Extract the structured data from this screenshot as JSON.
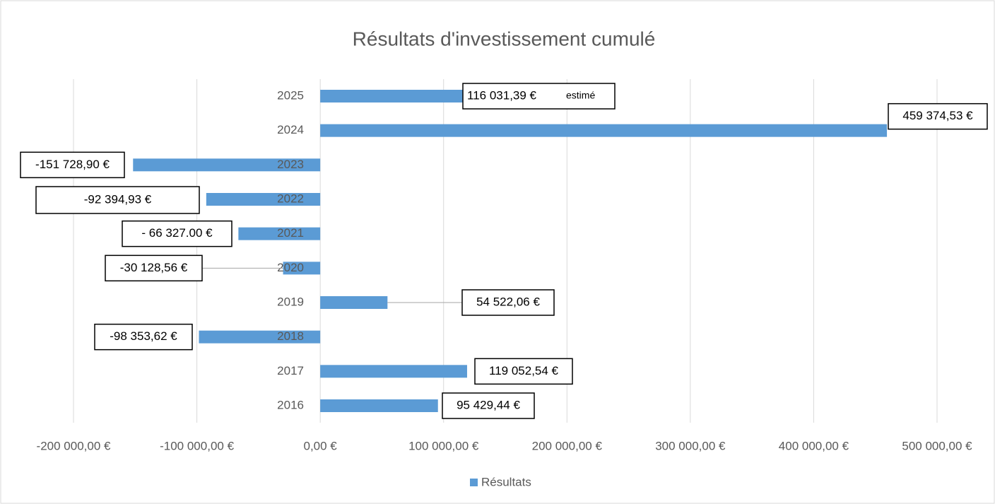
{
  "chart_data": {
    "type": "hbar",
    "title": "Résultats d'investissement cumulé",
    "categories": [
      "2016",
      "2017",
      "2018",
      "2019",
      "2020",
      "2021",
      "2022",
      "2023",
      "2024",
      "2025"
    ],
    "series": [
      {
        "name": "Résultats",
        "color": "#5b9bd5",
        "values": [
          95429.44,
          119052.54,
          -98353.62,
          54522.06,
          -30128.56,
          -66327.0,
          -92394.93,
          -151728.9,
          459374.53,
          116031.39
        ],
        "value_labels": [
          "95 429,44 €",
          "119 052,54 €",
          "-98 353,62 €",
          "54 522,06 €",
          "-30 128,56 €",
          "- 66 327.00 €",
          "-92 394,93 €",
          "-151 728,90 €",
          "459 374,53 €",
          "116 031,39 €"
        ]
      }
    ],
    "annotations": [
      {
        "category": "2025",
        "text": "estimé"
      }
    ],
    "xlim": [
      -200000,
      500000
    ],
    "xticks": [
      {
        "value": -200000,
        "label": "-200 000,00 €"
      },
      {
        "value": -100000,
        "label": "-100 000,00 €"
      },
      {
        "value": 0,
        "label": "0,00 €"
      },
      {
        "value": 100000,
        "label": "100 000,00 €"
      },
      {
        "value": 200000,
        "label": "200 000,00 €"
      },
      {
        "value": 300000,
        "label": "300 000,00 €"
      },
      {
        "value": 400000,
        "label": "400 000,00 €"
      },
      {
        "value": 500000,
        "label": "500 000,00 €"
      }
    ],
    "grid": true,
    "legend": "bottom"
  }
}
